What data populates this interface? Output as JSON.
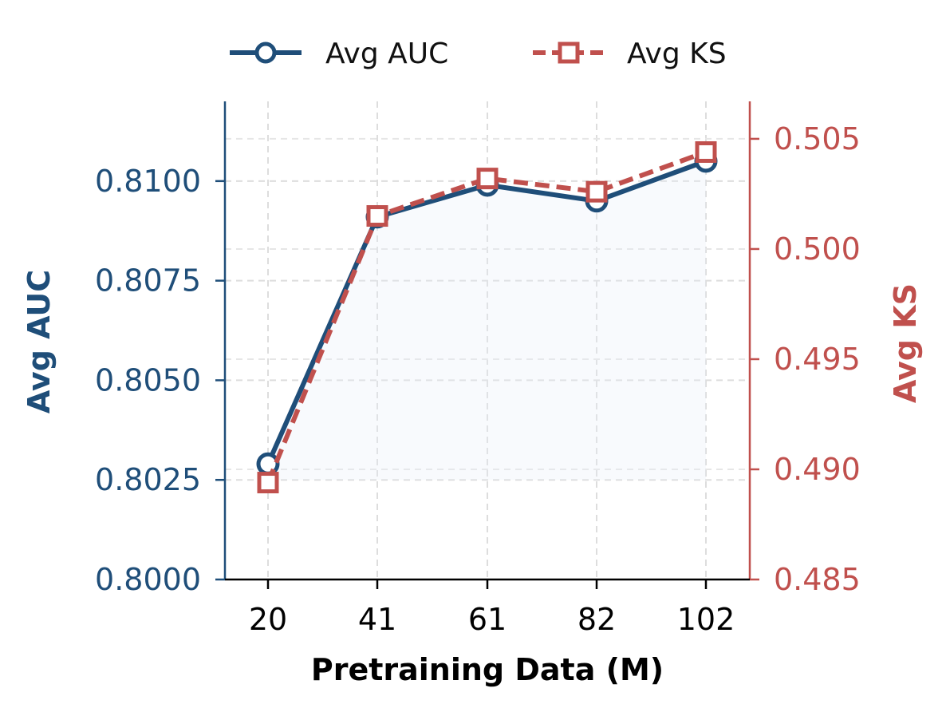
{
  "chart_data": {
    "type": "line",
    "x": [
      20,
      41,
      61,
      82,
      102
    ],
    "xlabel": "Pretraining Data (M)",
    "series": [
      {
        "name": "Avg AUC",
        "axis": "left",
        "values": [
          0.8029,
          0.8091,
          0.8099,
          0.8095,
          0.8105
        ],
        "color": "#1f4e79",
        "marker": "circle",
        "linestyle": "solid"
      },
      {
        "name": "Avg KS",
        "axis": "right",
        "values": [
          0.4894,
          0.5015,
          0.5032,
          0.5026,
          0.5044
        ],
        "color": "#c0504d",
        "marker": "square",
        "linestyle": "dashed"
      }
    ],
    "y_left": {
      "label": "Avg AUC",
      "ticks": [
        "0.8000",
        "0.8025",
        "0.8050",
        "0.8075",
        "0.8100"
      ],
      "range": [
        0.8,
        0.812
      ],
      "color": "#1f4e79"
    },
    "y_right": {
      "label": "Avg KS",
      "ticks": [
        "0.485",
        "0.490",
        "0.495",
        "0.500",
        "0.505"
      ],
      "range": [
        0.485,
        0.5067
      ],
      "color": "#c0504d"
    },
    "x_ticks": [
      "20",
      "41",
      "61",
      "82",
      "102"
    ],
    "grid": true,
    "legend": "top-center"
  }
}
